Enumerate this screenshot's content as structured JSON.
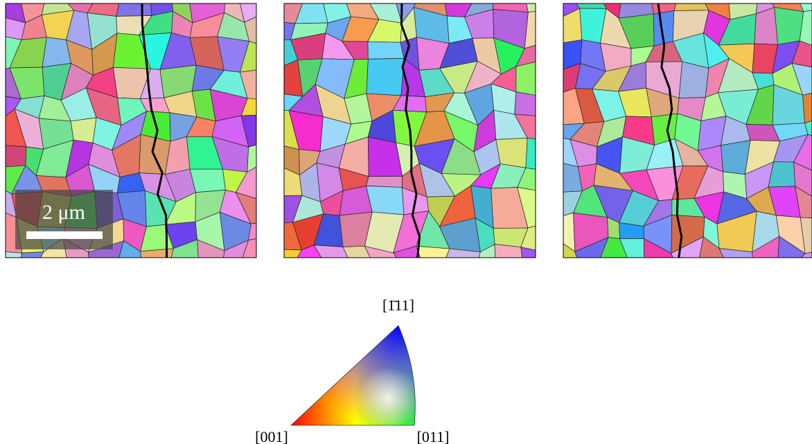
{
  "scale_bar": {
    "label": "2 μm"
  },
  "ipf_key": {
    "top": "[1̄11]",
    "left": "[001]",
    "right": "[011]"
  }
}
